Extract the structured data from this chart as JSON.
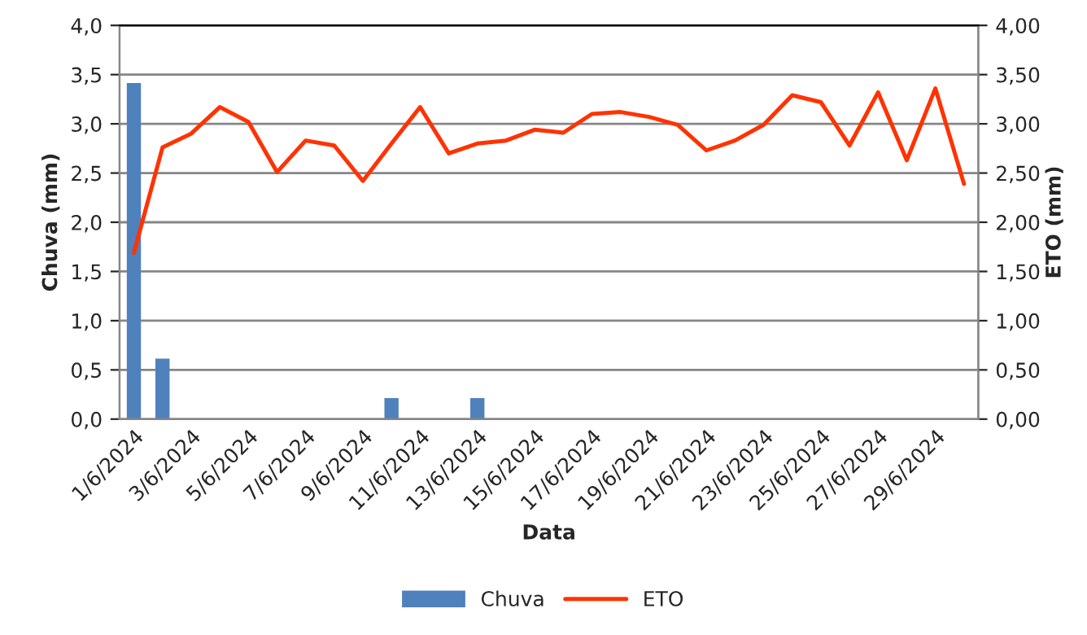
{
  "chart_data": {
    "type": "bar",
    "xlabel": "Data",
    "ylabel": "Chuva (mm)",
    "y2label": "ETO (mm)",
    "categories": [
      "1/6/2024",
      null,
      "3/6/2024",
      null,
      "5/6/2024",
      null,
      "7/6/2024",
      null,
      "9/6/2024",
      null,
      "11/6/2024",
      null,
      "13/6/2024",
      null,
      "15/6/2024",
      null,
      "17/6/2024",
      null,
      "19/6/2024",
      null,
      "21/6/2024",
      null,
      "23/6/2024",
      null,
      "25/6/2024",
      null,
      "27/6/2024",
      null,
      "29/6/2024",
      null
    ],
    "series": [
      {
        "name": "Chuva",
        "color": "#4f81bd",
        "values": [
          3.4,
          0.6,
          null,
          null,
          null,
          null,
          null,
          null,
          null,
          0.2,
          null,
          null,
          0.2,
          null,
          null,
          null,
          null,
          null,
          null,
          null,
          null,
          null,
          null,
          null,
          null,
          null,
          null,
          null,
          null,
          null
        ]
      },
      {
        "name": "ETO",
        "type": "line",
        "axis": "y2",
        "color": "#ff3300",
        "values": [
          1.69,
          2.76,
          2.9,
          3.17,
          3.02,
          2.51,
          2.83,
          2.78,
          2.42,
          2.8,
          3.17,
          2.7,
          2.8,
          2.83,
          2.94,
          2.91,
          3.1,
          3.12,
          3.07,
          2.99,
          2.73,
          2.83,
          2.99,
          3.29,
          3.22,
          2.78,
          3.32,
          2.63,
          3.36,
          2.39
        ]
      }
    ],
    "ylim": [
      0,
      4
    ],
    "yticks": [
      {
        "value": 0,
        "label": "0,0"
      },
      {
        "value": 0.5,
        "label": "0,5"
      },
      {
        "value": 1,
        "label": "1,0"
      },
      {
        "value": 1.5,
        "label": "1,5"
      },
      {
        "value": 2,
        "label": "2,0"
      },
      {
        "value": 2.5,
        "label": "2,5"
      },
      {
        "value": 3,
        "label": "3,0"
      },
      {
        "value": 3.5,
        "label": "3,5"
      },
      {
        "value": 4,
        "label": "4,0"
      }
    ],
    "y2lim": [
      0,
      4
    ],
    "y2ticks": [
      {
        "value": 0,
        "label": "0,00"
      },
      {
        "value": 0.5,
        "label": "0,50"
      },
      {
        "value": 1,
        "label": "1,00"
      },
      {
        "value": 1.5,
        "label": "1,50"
      },
      {
        "value": 2,
        "label": "2,00"
      },
      {
        "value": 2.5,
        "label": "2,50"
      },
      {
        "value": 3,
        "label": "3,00"
      },
      {
        "value": 3.5,
        "label": "3,50"
      },
      {
        "value": 4,
        "label": "4,00"
      }
    ],
    "grid": "y",
    "legend": "bottom"
  }
}
